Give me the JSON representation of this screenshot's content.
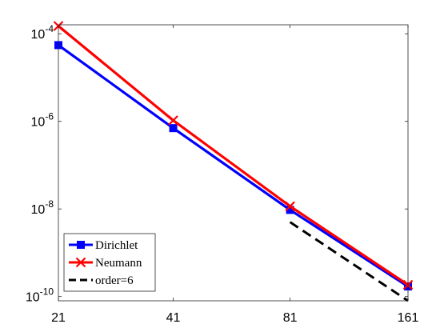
{
  "chart_data": {
    "type": "line",
    "x_scale": "log2",
    "y_scale": "log",
    "x": [
      21,
      41,
      81,
      161
    ],
    "xticks": [
      "21",
      "41",
      "81",
      "161"
    ],
    "ylim": [
      8e-11,
      0.00016
    ],
    "yticks": [
      {
        "base": "10",
        "exp": "-4"
      },
      {
        "base": "10",
        "exp": "-6"
      },
      {
        "base": "10",
        "exp": "-8"
      },
      {
        "base": "10",
        "exp": "-10"
      }
    ],
    "ytick_values": [
      0.0001,
      1e-06,
      1e-08,
      1e-10
    ],
    "grid": false,
    "legend_position": "bottom-left",
    "series": [
      {
        "name": "Dirichlet",
        "color": "#0000ff",
        "marker": "square",
        "x": [
          21,
          41,
          81,
          161
        ],
        "values": [
          5.5e-05,
          7e-07,
          9.5e-09,
          1.7e-10
        ]
      },
      {
        "name": "Neumann",
        "color": "#ff0000",
        "marker": "x",
        "x": [
          21,
          41,
          81,
          161
        ],
        "values": [
          0.00015,
          1.05e-06,
          1.15e-08,
          1.85e-10
        ]
      },
      {
        "name": "order=6",
        "color": "#000000",
        "dash": true,
        "x": [
          81,
          161
        ],
        "values": [
          5e-09,
          8e-11
        ]
      }
    ]
  }
}
